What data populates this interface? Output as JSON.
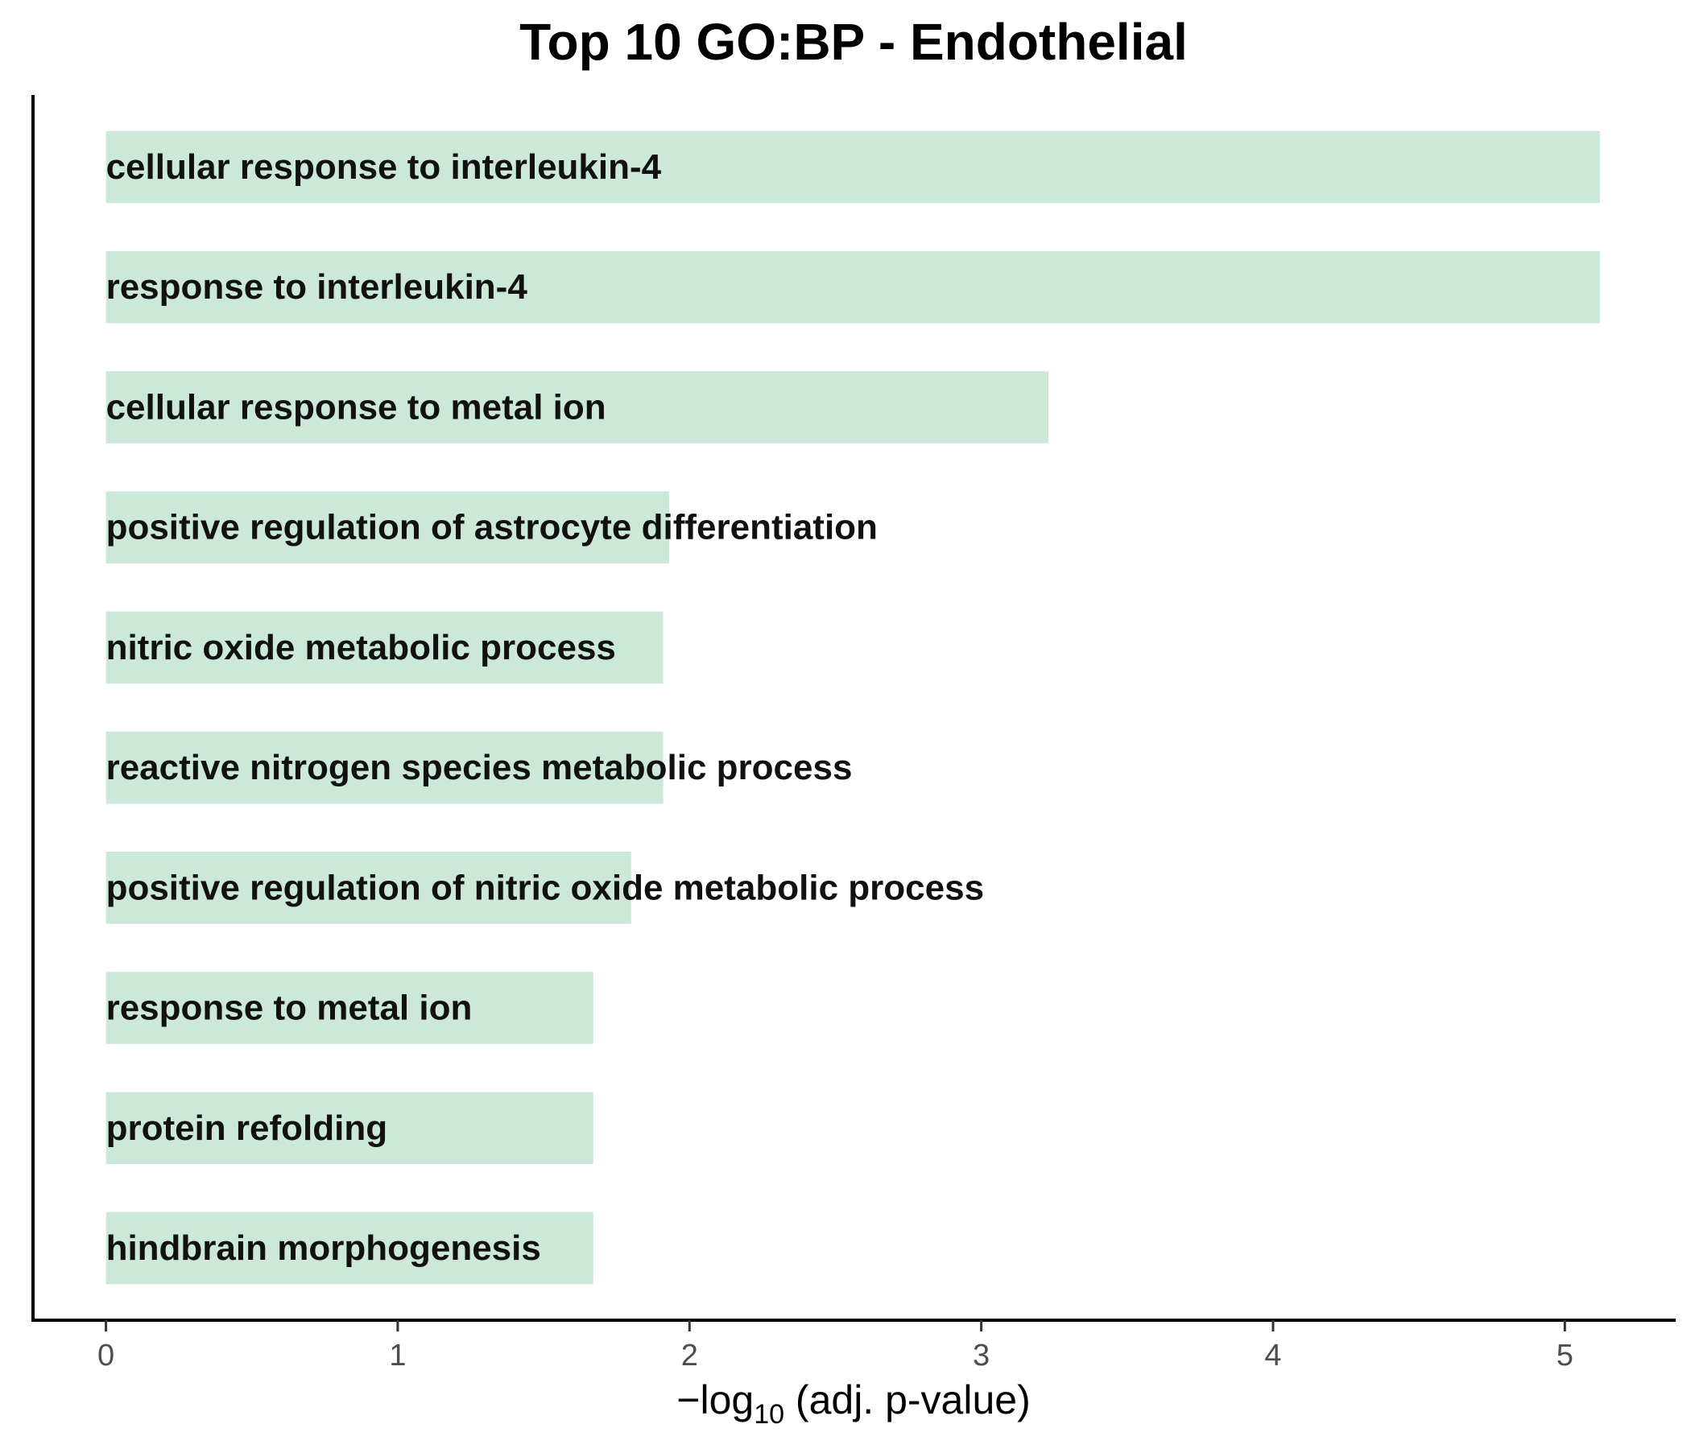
{
  "chart_data": {
    "type": "bar",
    "orientation": "horizontal",
    "title": "Top 10 GO:BP - Endothelial",
    "xlabel": {
      "prefix": "−log",
      "subscript": "10",
      "suffix": " (adj. p-value)"
    },
    "ylabel": "",
    "xlim": [
      -0.25,
      5.38
    ],
    "xticks": [
      0,
      1,
      2,
      3,
      4,
      5
    ],
    "grid": false,
    "legend": "none",
    "bar_color": "#cce8d8",
    "categories": [
      "cellular response to interleukin-4",
      "response to interleukin-4",
      "cellular response to metal ion",
      "positive regulation of astrocyte differentiation",
      "nitric oxide metabolic process",
      "reactive nitrogen species metabolic process",
      "positive regulation of nitric oxide metabolic process",
      "response to metal ion",
      "protein refolding",
      "hindbrain morphogenesis"
    ],
    "values": [
      5.12,
      5.12,
      3.23,
      1.93,
      1.91,
      1.91,
      1.8,
      1.67,
      1.67,
      1.67
    ]
  }
}
